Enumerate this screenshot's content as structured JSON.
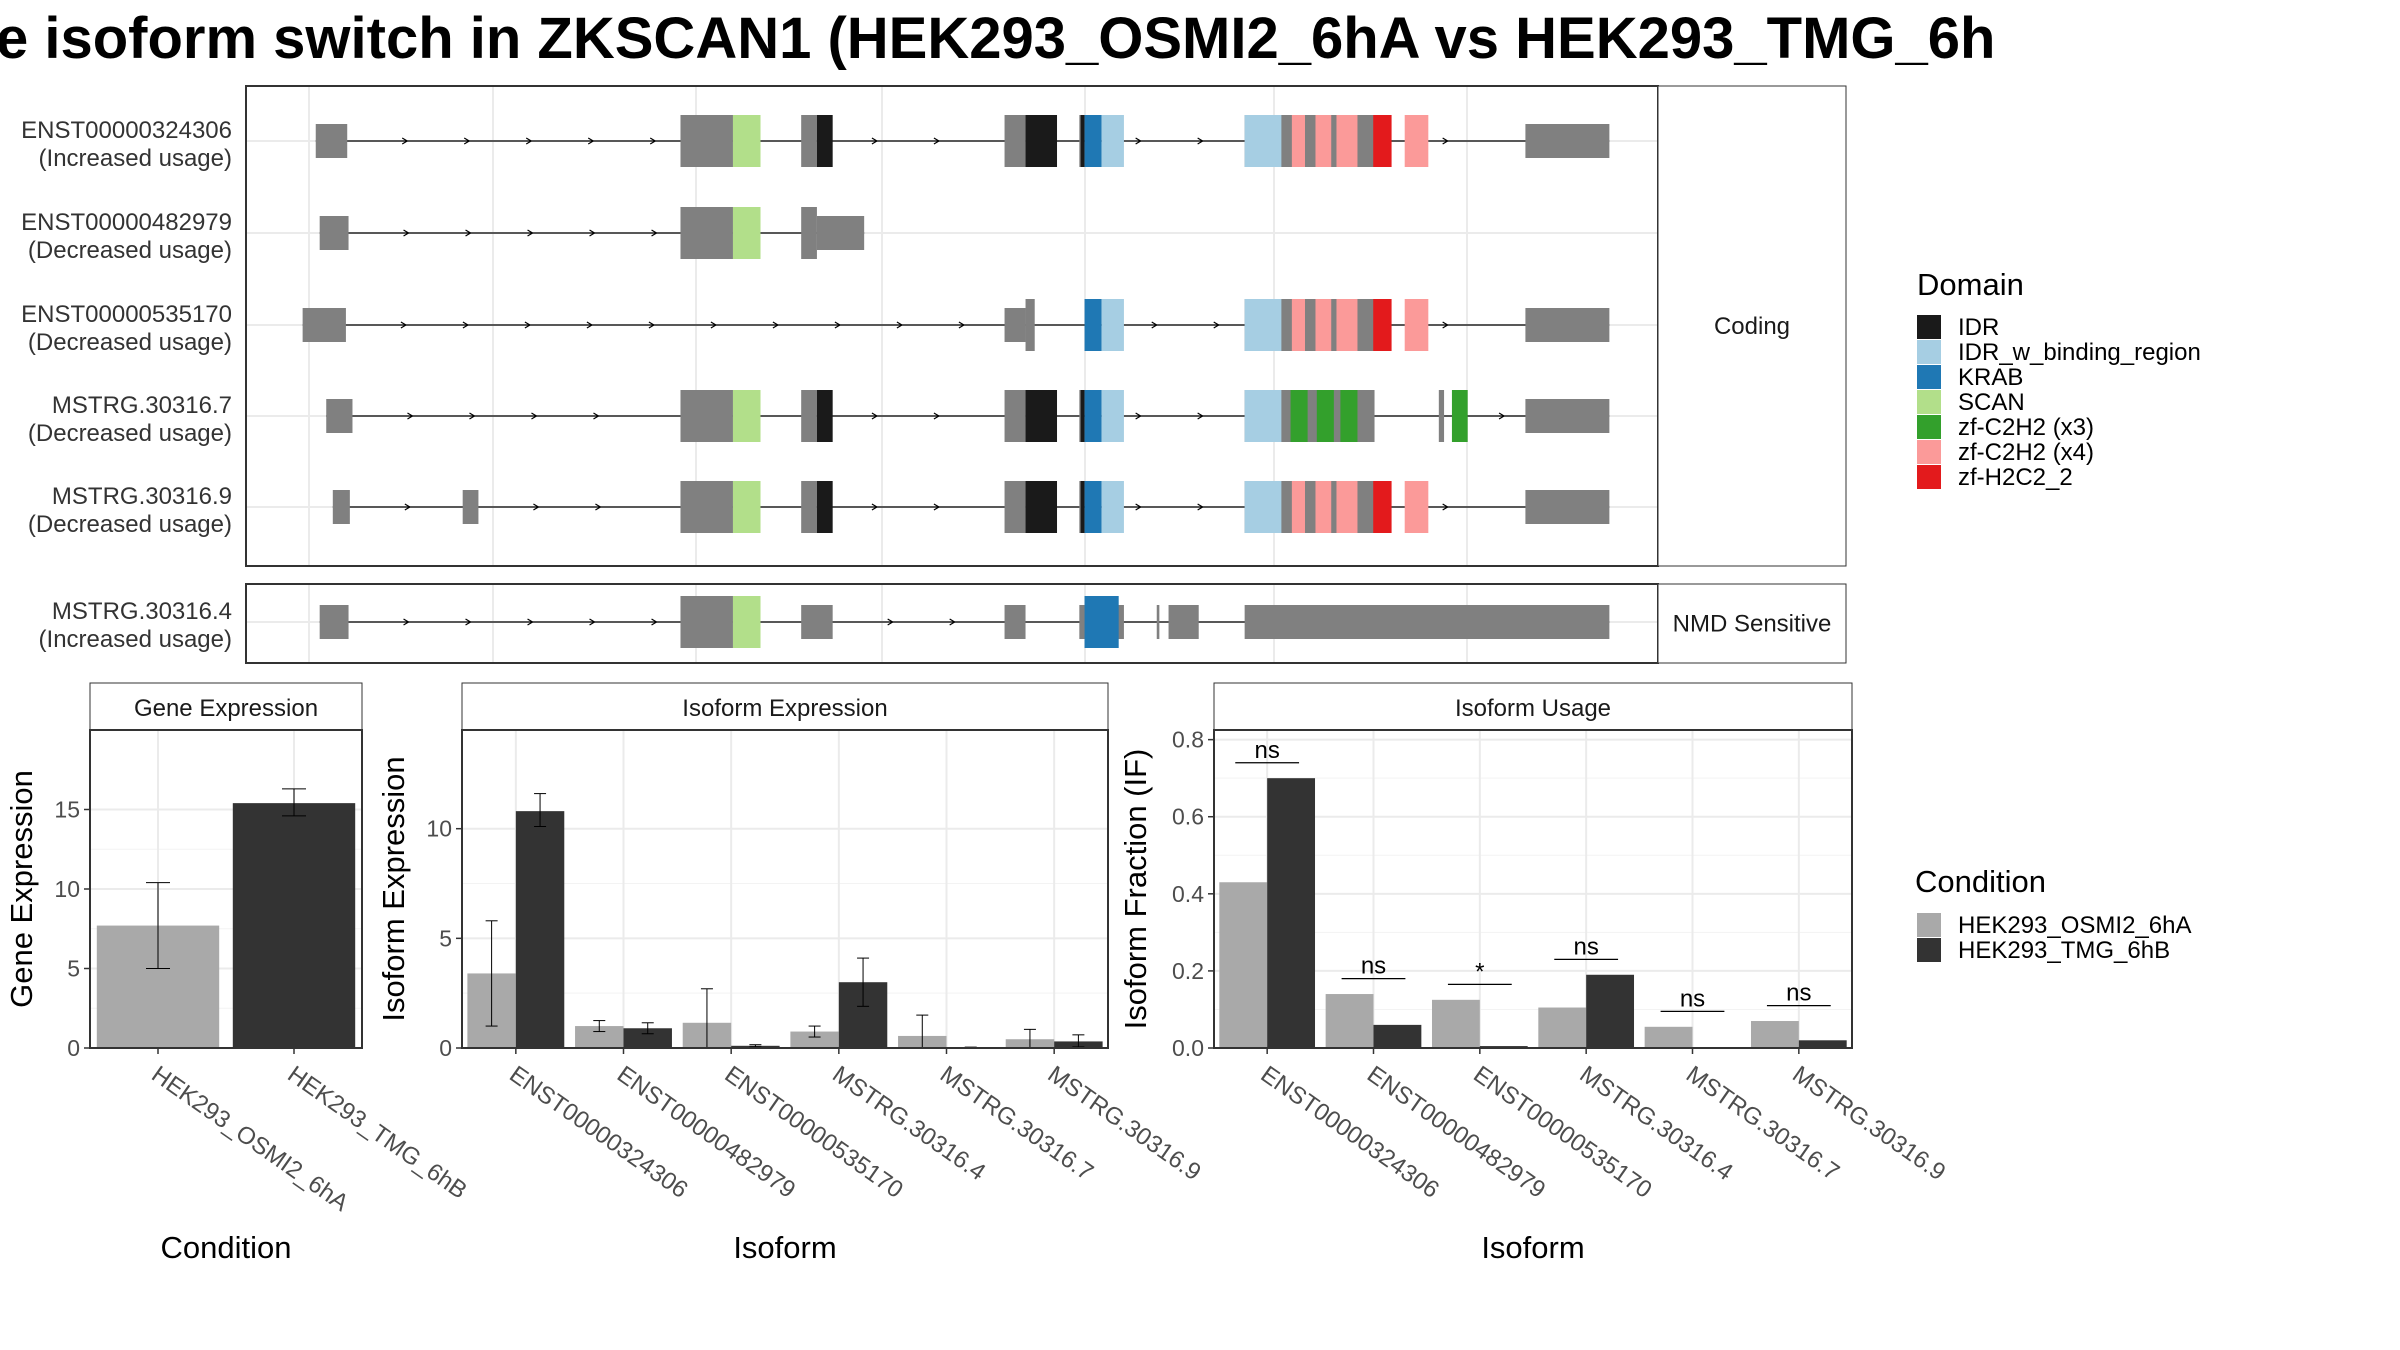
{
  "title": "e isoform switch in ZKSCAN1 (HEK293_OSMI2_6hA vs HEK293_TMG_6h",
  "colors": {
    "IDR": "#1a1a1a",
    "IDR_w_binding_region": "#a6cee3",
    "KRAB": "#1f78b4",
    "SCAN": "#b2df8a",
    "zf-C2H2 (x3)": "#33a02c",
    "zf-C2H2 (x4)": "#fb9a99",
    "zf-H2C2_2": "#e31a1c",
    "exon": "#808080",
    "cond1": "#a9a9a9",
    "cond2": "#333333"
  },
  "structure": {
    "facets": [
      "Coding",
      "NMD Sensitive"
    ],
    "transcripts": [
      {
        "id": "ENST00000324306",
        "note": "(Increased usage)",
        "facet": "Coding",
        "utr": [
          [
            0.012,
            0.036
          ],
          [
            0.934,
            0.998
          ]
        ],
        "cds": [
          [
            0.29,
            0.33
          ],
          [
            0.382,
            0.394
          ],
          [
            0.537,
            0.553
          ],
          [
            0.594,
            0.595
          ],
          [
            0.72,
            0.829
          ]
        ],
        "domains": [
          {
            "d": "SCAN",
            "s": 0.33,
            "e": 0.351
          },
          {
            "d": "IDR",
            "s": 0.394,
            "e": 0.406
          },
          {
            "d": "IDR",
            "s": 0.553,
            "e": 0.577
          },
          {
            "d": "IDR",
            "s": 0.595,
            "e": 0.598
          },
          {
            "d": "KRAB",
            "s": 0.598,
            "e": 0.611
          },
          {
            "d": "IDR_w_binding_region",
            "s": 0.611,
            "e": 0.628
          },
          {
            "d": "IDR_w_binding_region",
            "s": 0.72,
            "e": 0.748
          },
          {
            "d": "zf-C2H2 (x4)",
            "s": 0.756,
            "e": 0.766
          },
          {
            "d": "zf-C2H2 (x4)",
            "s": 0.774,
            "e": 0.786
          },
          {
            "d": "zf-C2H2 (x4)",
            "s": 0.79,
            "e": 0.806
          },
          {
            "d": "zf-H2C2_2",
            "s": 0.818,
            "e": 0.832
          },
          {
            "d": "zf-C2H2 (x4)",
            "s": 0.842,
            "e": 0.86
          }
        ]
      },
      {
        "id": "ENST00000482979",
        "note": "(Decreased usage)",
        "facet": "Coding",
        "utr": [
          [
            0.015,
            0.037
          ],
          [
            0.394,
            0.43
          ]
        ],
        "cds": [
          [
            0.29,
            0.33
          ],
          [
            0.382,
            0.394
          ]
        ],
        "domains": [
          {
            "d": "SCAN",
            "s": 0.33,
            "e": 0.351
          }
        ]
      },
      {
        "id": "ENST00000535170",
        "note": "(Decreased usage)",
        "facet": "Coding",
        "utr": [
          [
            0.002,
            0.035
          ],
          [
            0.537,
            0.553
          ],
          [
            0.934,
            0.998
          ]
        ],
        "cds": [
          [
            0.553,
            0.56
          ],
          [
            0.72,
            0.829
          ]
        ],
        "domains": [
          {
            "d": "KRAB",
            "s": 0.598,
            "e": 0.611
          },
          {
            "d": "IDR_w_binding_region",
            "s": 0.611,
            "e": 0.628
          },
          {
            "d": "IDR_w_binding_region",
            "s": 0.72,
            "e": 0.748
          },
          {
            "d": "zf-C2H2 (x4)",
            "s": 0.756,
            "e": 0.766
          },
          {
            "d": "zf-C2H2 (x4)",
            "s": 0.774,
            "e": 0.786
          },
          {
            "d": "zf-C2H2 (x4)",
            "s": 0.79,
            "e": 0.806
          },
          {
            "d": "zf-H2C2_2",
            "s": 0.818,
            "e": 0.832
          },
          {
            "d": "zf-C2H2 (x4)",
            "s": 0.842,
            "e": 0.86
          }
        ]
      },
      {
        "id": "MSTRG.30316.7",
        "note": "(Decreased usage)",
        "facet": "Coding",
        "utr": [
          [
            0.02,
            0.04
          ],
          [
            0.934,
            0.998
          ]
        ],
        "cds": [
          [
            0.29,
            0.33
          ],
          [
            0.382,
            0.394
          ],
          [
            0.537,
            0.553
          ],
          [
            0.594,
            0.595
          ],
          [
            0.72,
            0.819
          ],
          [
            0.868,
            0.872
          ]
        ],
        "domains": [
          {
            "d": "SCAN",
            "s": 0.33,
            "e": 0.351
          },
          {
            "d": "IDR",
            "s": 0.394,
            "e": 0.406
          },
          {
            "d": "IDR",
            "s": 0.553,
            "e": 0.577
          },
          {
            "d": "IDR",
            "s": 0.595,
            "e": 0.598
          },
          {
            "d": "KRAB",
            "s": 0.598,
            "e": 0.611
          },
          {
            "d": "IDR_w_binding_region",
            "s": 0.611,
            "e": 0.628
          },
          {
            "d": "IDR_w_binding_region",
            "s": 0.72,
            "e": 0.748
          },
          {
            "d": "zf-C2H2 (x3)",
            "s": 0.755,
            "e": 0.768
          },
          {
            "d": "zf-C2H2 (x3)",
            "s": 0.775,
            "e": 0.788
          },
          {
            "d": "zf-C2H2 (x3)",
            "s": 0.793,
            "e": 0.806
          },
          {
            "d": "zf-C2H2 (x3)",
            "s": 0.878,
            "e": 0.89
          }
        ]
      },
      {
        "id": "MSTRG.30316.9",
        "note": "(Decreased usage)",
        "facet": "Coding",
        "utr": [
          [
            0.025,
            0.038
          ],
          [
            0.124,
            0.136
          ],
          [
            0.934,
            0.998
          ]
        ],
        "cds": [
          [
            0.29,
            0.33
          ],
          [
            0.382,
            0.394
          ],
          [
            0.537,
            0.553
          ],
          [
            0.594,
            0.595
          ],
          [
            0.72,
            0.829
          ]
        ],
        "domains": [
          {
            "d": "SCAN",
            "s": 0.33,
            "e": 0.351
          },
          {
            "d": "IDR",
            "s": 0.394,
            "e": 0.406
          },
          {
            "d": "IDR",
            "s": 0.553,
            "e": 0.577
          },
          {
            "d": "IDR",
            "s": 0.595,
            "e": 0.598
          },
          {
            "d": "KRAB",
            "s": 0.598,
            "e": 0.611
          },
          {
            "d": "IDR_w_binding_region",
            "s": 0.611,
            "e": 0.628
          },
          {
            "d": "IDR_w_binding_region",
            "s": 0.72,
            "e": 0.748
          },
          {
            "d": "zf-C2H2 (x4)",
            "s": 0.756,
            "e": 0.766
          },
          {
            "d": "zf-C2H2 (x4)",
            "s": 0.774,
            "e": 0.786
          },
          {
            "d": "zf-C2H2 (x4)",
            "s": 0.79,
            "e": 0.806
          },
          {
            "d": "zf-H2C2_2",
            "s": 0.818,
            "e": 0.832
          },
          {
            "d": "zf-C2H2 (x4)",
            "s": 0.842,
            "e": 0.86
          }
        ]
      },
      {
        "id": "MSTRG.30316.4",
        "note": "(Increased usage)",
        "facet": "NMD Sensitive",
        "utr": [
          [
            0.015,
            0.037
          ],
          [
            0.382,
            0.406
          ],
          [
            0.537,
            0.553
          ],
          [
            0.594,
            0.628
          ],
          [
            0.653,
            0.655
          ],
          [
            0.662,
            0.685
          ],
          [
            0.72,
            0.998
          ]
        ],
        "cds": [
          [
            0.29,
            0.33
          ]
        ],
        "domains": [
          {
            "d": "SCAN",
            "s": 0.33,
            "e": 0.351
          },
          {
            "d": "KRAB",
            "s": 0.598,
            "e": 0.624
          }
        ]
      }
    ]
  },
  "legend_domain": {
    "title": "Domain",
    "items": [
      "IDR",
      "IDR_w_binding_region",
      "KRAB",
      "SCAN",
      "zf-C2H2 (x3)",
      "zf-C2H2 (x4)",
      "zf-H2C2_2"
    ]
  },
  "legend_condition": {
    "title": "Condition",
    "items": [
      "HEK293_OSMI2_6hA",
      "HEK293_TMG_6hB"
    ]
  },
  "chart_data": [
    {
      "type": "bar",
      "title": "Gene Expression",
      "xlabel": "Condition",
      "ylabel": "Gene Expression",
      "ylim": [
        0,
        20
      ],
      "yticks": [
        0,
        5,
        10,
        15
      ],
      "categories": [
        "HEK293_OSMI2_6hA",
        "HEK293_TMG_6hB"
      ],
      "values": [
        7.7,
        15.4
      ],
      "err_low": [
        5.0,
        14.6
      ],
      "err_high": [
        10.4,
        16.3
      ]
    },
    {
      "type": "bar",
      "title": "Isoform Expression",
      "xlabel": "Isoform",
      "ylabel": "Isoform Expression",
      "ylim": [
        0,
        14.5
      ],
      "yticks": [
        0,
        5,
        10
      ],
      "categories": [
        "ENST00000324306",
        "ENST00000482979",
        "ENST00000535170",
        "MSTRG.30316.4",
        "MSTRG.30316.7",
        "MSTRG.30316.9"
      ],
      "series": [
        {
          "name": "HEK293_OSMI2_6hA",
          "values": [
            3.4,
            1.0,
            1.15,
            0.75,
            0.55,
            0.4
          ],
          "err_low": [
            1.0,
            0.75,
            0.0,
            0.5,
            0.0,
            0.0
          ],
          "err_high": [
            5.8,
            1.25,
            2.7,
            1.0,
            1.5,
            0.85
          ]
        },
        {
          "name": "HEK293_TMG_6hB",
          "values": [
            10.8,
            0.9,
            0.1,
            3.0,
            0.02,
            0.3
          ],
          "err_low": [
            10.1,
            0.65,
            0.05,
            1.9,
            0.0,
            0.05
          ],
          "err_high": [
            11.6,
            1.15,
            0.15,
            4.1,
            0.04,
            0.6
          ]
        }
      ]
    },
    {
      "type": "bar",
      "title": "Isoform Usage",
      "xlabel": "Isoform",
      "ylabel": "Isoform Fraction (IF)",
      "ylim": [
        0,
        0.825
      ],
      "yticks": [
        0.0,
        0.2,
        0.4,
        0.6,
        0.8
      ],
      "ytick_labels": [
        "0.0",
        "0.2",
        "0.4",
        "0.6",
        "0.8"
      ],
      "categories": [
        "ENST00000324306",
        "ENST00000482979",
        "ENST00000535170",
        "MSTRG.30316.4",
        "MSTRG.30316.7",
        "MSTRG.30316.9"
      ],
      "series": [
        {
          "name": "HEK293_OSMI2_6hA",
          "values": [
            0.43,
            0.14,
            0.125,
            0.105,
            0.055,
            0.07
          ]
        },
        {
          "name": "HEK293_TMG_6hB",
          "values": [
            0.7,
            0.06,
            0.005,
            0.19,
            0.0,
            0.02
          ]
        }
      ],
      "significance": [
        "ns",
        "ns",
        "*",
        "ns",
        "ns",
        "ns"
      ],
      "sig_level": [
        0.74,
        0.18,
        0.165,
        0.23,
        0.095,
        0.11
      ]
    }
  ]
}
